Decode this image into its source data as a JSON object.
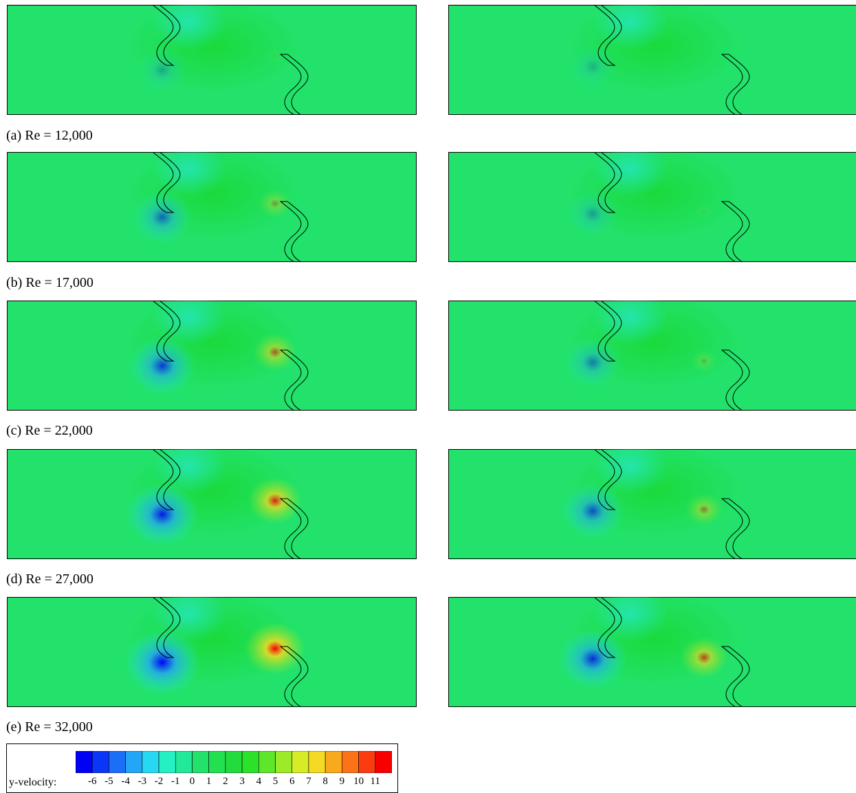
{
  "colors": {
    "field": "#22e26b",
    "scale": [
      "#0000f5",
      "#0b35f7",
      "#1a6ef7",
      "#23a6f5",
      "#26d8f2",
      "#24f0c4",
      "#22e89a",
      "#22e26b",
      "#22e04f",
      "#21dc3c",
      "#2be12a",
      "#5ee62a",
      "#9ceb29",
      "#d5ec27",
      "#f4da22",
      "#f9aa1c",
      "#fb7316",
      "#fb3b10",
      "#f80000"
    ]
  },
  "captions": [
    {
      "label": "(a) Re = 12,000",
      "re": 12000
    },
    {
      "label": "(b) Re = 17,000",
      "re": 17000
    },
    {
      "label": "(c) Re = 22,000",
      "re": 22000
    },
    {
      "label": "(d) Re = 27,000",
      "re": 27000
    },
    {
      "label": "(e) Re = 32,000",
      "re": 32000
    }
  ],
  "panels": [
    {
      "left": {
        "neg": 0.25,
        "pos": 0.05
      },
      "right": {
        "neg": 0.2,
        "pos": 0.0
      }
    },
    {
      "left": {
        "neg": 0.55,
        "pos": 0.35
      },
      "right": {
        "neg": 0.3,
        "pos": 0.05
      }
    },
    {
      "left": {
        "neg": 0.75,
        "pos": 0.6
      },
      "right": {
        "neg": 0.45,
        "pos": 0.2
      }
    },
    {
      "left": {
        "neg": 0.9,
        "pos": 0.85
      },
      "right": {
        "neg": 0.65,
        "pos": 0.45
      }
    },
    {
      "left": {
        "neg": 1.0,
        "pos": 1.0
      },
      "right": {
        "neg": 0.8,
        "pos": 0.7
      }
    }
  ],
  "legend": {
    "label": "y-velocity:",
    "ticks": [
      "-6",
      "-5",
      "-4",
      "-3",
      "-2",
      "-1",
      "0",
      "1",
      "2",
      "3",
      "4",
      "5",
      "6",
      "7",
      "8",
      "9",
      "10",
      "11"
    ]
  }
}
